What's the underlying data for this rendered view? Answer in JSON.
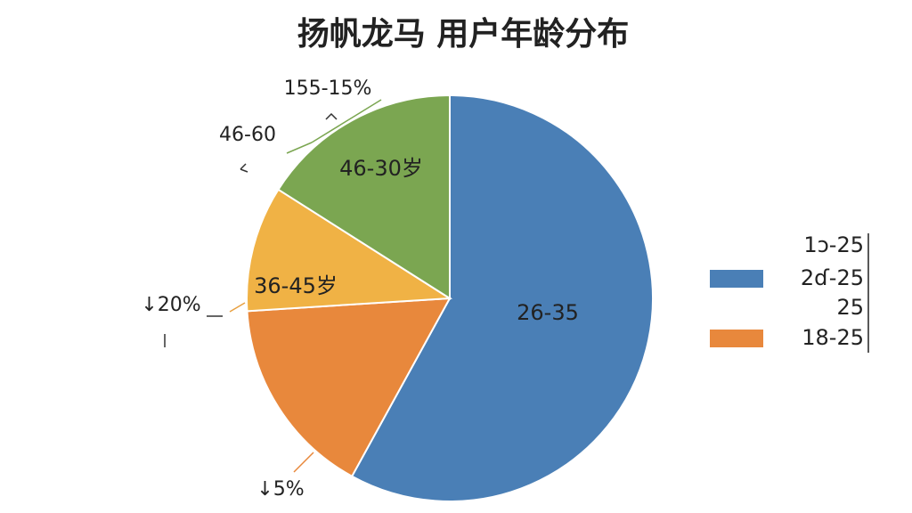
{
  "chart_data": {
    "type": "pie",
    "title": "扬帆龙马 用户年龄分布",
    "series": [
      {
        "name": "26-35",
        "color": "#4a7fb6",
        "values": [
          58
        ]
      },
      {
        "name": "18-25",
        "color": "#e8883c",
        "values": [
          16
        ]
      },
      {
        "name": "36-45岁",
        "color": "#f0b245",
        "values": [
          10
        ]
      },
      {
        "name": "46-30岁",
        "color": "#7ba651",
        "values": [
          16
        ]
      }
    ],
    "annotations": [
      "155-15%",
      "46-60",
      "↓20%",
      "↓5%"
    ],
    "legend": [
      {
        "label": "1ɔ-25"
      },
      {
        "label": "2ɗ-25",
        "color": "#4a7fb6"
      },
      {
        "label": "25"
      },
      {
        "label": "18-25",
        "color": "#e8883c"
      }
    ]
  }
}
